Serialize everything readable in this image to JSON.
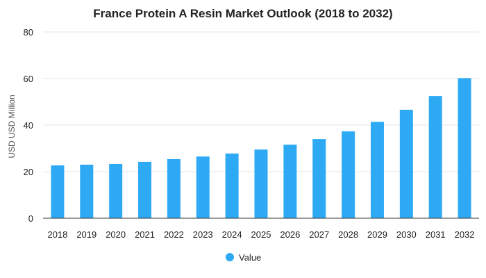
{
  "chart_data": {
    "type": "bar",
    "title": "France Protein A Resin Market Outlook (2018 to 2032)",
    "xlabel": "",
    "ylabel": "USD USD Million",
    "categories": [
      "2018",
      "2019",
      "2020",
      "2021",
      "2022",
      "2023",
      "2024",
      "2025",
      "2026",
      "2027",
      "2028",
      "2029",
      "2030",
      "2031",
      "2032"
    ],
    "series": [
      {
        "name": "Value",
        "color": "#2eaaf5",
        "values": [
          22.7,
          23.0,
          23.3,
          24.2,
          25.4,
          26.5,
          27.8,
          29.5,
          31.6,
          34.0,
          37.3,
          41.4,
          46.6,
          52.5,
          60.2
        ]
      }
    ],
    "ylim": [
      0,
      80
    ],
    "yticks": [
      "0",
      "20",
      "40",
      "60",
      "80"
    ],
    "grid": true,
    "legend_position": "bottom-center"
  }
}
